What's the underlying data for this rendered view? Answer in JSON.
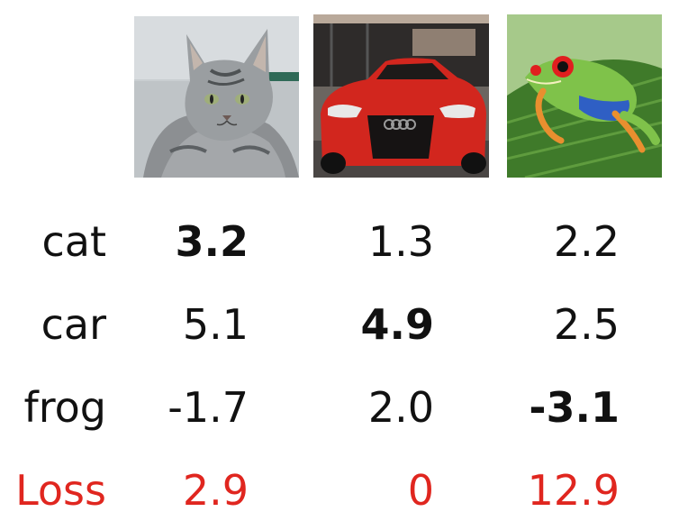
{
  "images": [
    {
      "name": "cat-image",
      "subject": "cat"
    },
    {
      "name": "car-image",
      "subject": "car"
    },
    {
      "name": "frog-image",
      "subject": "frog"
    }
  ],
  "rows": [
    {
      "label": "cat",
      "values": [
        "3.2",
        "1.3",
        "2.2"
      ],
      "bold_index": 0
    },
    {
      "label": "car",
      "values": [
        "5.1",
        "4.9",
        "2.5"
      ],
      "bold_index": 1
    },
    {
      "label": "frog",
      "values": [
        "-1.7",
        "2.0",
        "-3.1"
      ],
      "bold_index": 2
    }
  ],
  "loss": {
    "label": "Loss",
    "values": [
      "2.9",
      "0",
      "12.9"
    ]
  },
  "colors": {
    "text": "#111111",
    "loss": "#e0261f",
    "background": "#ffffff"
  }
}
